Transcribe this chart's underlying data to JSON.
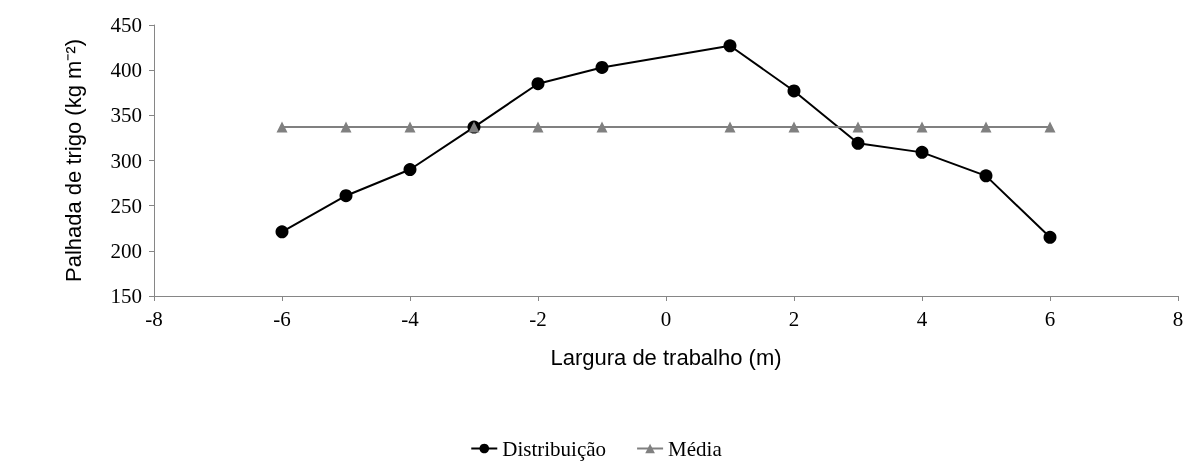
{
  "chart_data": {
    "type": "line",
    "xlabel": "Largura de trabalho (m)",
    "ylabel": "Palhada de trigo (kg m⁻²)",
    "xlim": [
      -8,
      8
    ],
    "xticks": [
      -8,
      -6,
      -4,
      -2,
      0,
      2,
      4,
      6,
      8
    ],
    "ylim": [
      150,
      450
    ],
    "yticks": [
      150,
      200,
      250,
      300,
      350,
      400,
      450
    ],
    "grid": false,
    "legend": "bottom",
    "series": [
      {
        "name": "Distribuição",
        "color": "#000000",
        "marker": "circle",
        "x": [
          -6,
          -5,
          -4,
          -3,
          -2,
          -1,
          1,
          2,
          3,
          4,
          5,
          6
        ],
        "values": [
          221,
          261,
          290,
          337,
          385,
          403,
          427,
          377,
          319,
          309,
          283,
          215
        ]
      },
      {
        "name": "Média",
        "color": "#808080",
        "marker": "triangle",
        "x": [
          -6,
          -5,
          -4,
          -3,
          -2,
          -1,
          1,
          2,
          3,
          4,
          5,
          6
        ],
        "values": [
          337,
          337,
          337,
          337,
          337,
          337,
          337,
          337,
          337,
          337,
          337,
          337
        ]
      }
    ]
  }
}
